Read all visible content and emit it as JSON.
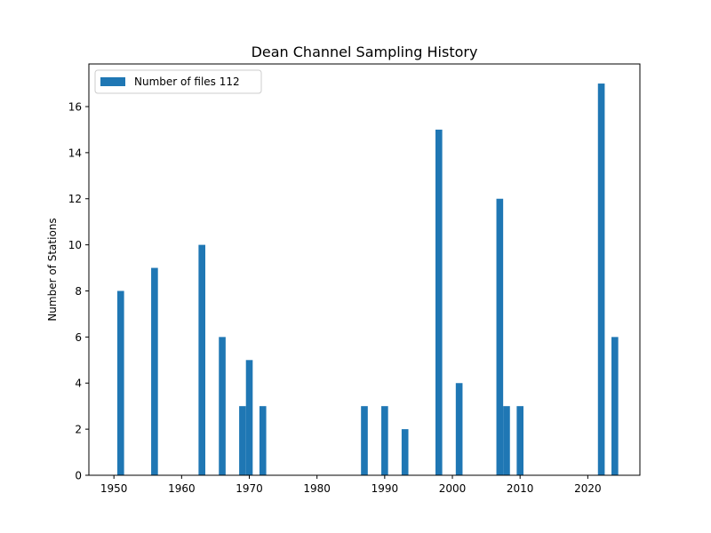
{
  "chart_data": {
    "type": "bar",
    "title": "Dean Channel Sampling History",
    "xlabel": "",
    "ylabel": "Number of Stations",
    "xlim": [
      1946.3,
      2027.7
    ],
    "ylim": [
      0,
      17.85
    ],
    "xticks": [
      1950,
      1960,
      1970,
      1980,
      1990,
      2000,
      2010,
      2020
    ],
    "yticks": [
      0,
      2,
      4,
      6,
      8,
      10,
      12,
      14,
      16
    ],
    "bar_width": 1,
    "legend_position": "upper-left",
    "grid": false,
    "color": "#1f77b4",
    "series": [
      {
        "name": "Number of files 112",
        "x": [
          1951,
          1956,
          1963,
          1966,
          1969,
          1970,
          1972,
          1987,
          1990,
          1993,
          1998,
          2001,
          2007,
          2008,
          2010,
          2022,
          2024
        ],
        "values": [
          8,
          9,
          10,
          6,
          3,
          5,
          3,
          3,
          3,
          2,
          15,
          4,
          12,
          3,
          3,
          17,
          6
        ]
      }
    ]
  }
}
